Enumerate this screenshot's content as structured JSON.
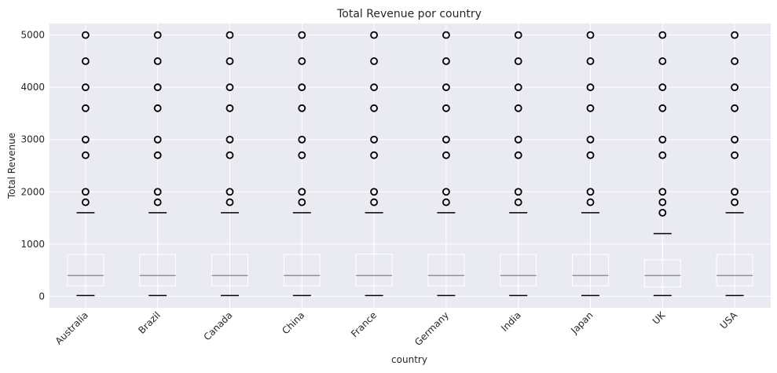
{
  "chart_data": {
    "type": "box",
    "title": "Total Revenue por country",
    "xlabel": "country",
    "ylabel": "Total Revenue",
    "ylim": [
      -220,
      5220
    ],
    "yticks": [
      0,
      1000,
      2000,
      3000,
      4000,
      5000
    ],
    "grid": true,
    "categories": [
      "Australia",
      "Brazil",
      "Canada",
      "China",
      "France",
      "Germany",
      "India",
      "Japan",
      "UK",
      "USA"
    ],
    "boxes": [
      {
        "category": "Australia",
        "whisker_low": 15,
        "q1": 200,
        "median": 400,
        "q3": 800,
        "whisker_high": 1600,
        "outliers": [
          1800,
          2000,
          2700,
          3000,
          3600,
          4000,
          4500,
          5000
        ]
      },
      {
        "category": "Brazil",
        "whisker_low": 15,
        "q1": 200,
        "median": 400,
        "q3": 800,
        "whisker_high": 1600,
        "outliers": [
          1800,
          2000,
          2700,
          3000,
          3600,
          4000,
          4500,
          5000
        ]
      },
      {
        "category": "Canada",
        "whisker_low": 15,
        "q1": 200,
        "median": 400,
        "q3": 800,
        "whisker_high": 1600,
        "outliers": [
          1800,
          2000,
          2700,
          3000,
          3600,
          4000,
          4500,
          5000
        ]
      },
      {
        "category": "China",
        "whisker_low": 15,
        "q1": 200,
        "median": 400,
        "q3": 800,
        "whisker_high": 1600,
        "outliers": [
          1800,
          2000,
          2700,
          3000,
          3600,
          4000,
          4500,
          5000
        ]
      },
      {
        "category": "France",
        "whisker_low": 15,
        "q1": 200,
        "median": 400,
        "q3": 810,
        "whisker_high": 1600,
        "outliers": [
          1800,
          2000,
          2700,
          3000,
          3600,
          4000,
          4500,
          5000
        ]
      },
      {
        "category": "Germany",
        "whisker_low": 15,
        "q1": 200,
        "median": 400,
        "q3": 800,
        "whisker_high": 1600,
        "outliers": [
          1800,
          2000,
          2700,
          3000,
          3600,
          4000,
          4500,
          5000
        ]
      },
      {
        "category": "India",
        "whisker_low": 15,
        "q1": 200,
        "median": 400,
        "q3": 800,
        "whisker_high": 1600,
        "outliers": [
          1800,
          2000,
          2700,
          3000,
          3600,
          4000,
          4500,
          5000
        ]
      },
      {
        "category": "Japan",
        "whisker_low": 15,
        "q1": 200,
        "median": 400,
        "q3": 800,
        "whisker_high": 1600,
        "outliers": [
          1800,
          2000,
          2700,
          3000,
          3600,
          4000,
          4500,
          5000
        ]
      },
      {
        "category": "UK",
        "whisker_low": 15,
        "q1": 180,
        "median": 400,
        "q3": 700,
        "whisker_high": 1200,
        "outliers": [
          1600,
          1800,
          2000,
          2700,
          3000,
          3600,
          4000,
          4500,
          5000
        ]
      },
      {
        "category": "USA",
        "whisker_low": 15,
        "q1": 200,
        "median": 400,
        "q3": 800,
        "whisker_high": 1600,
        "outliers": [
          1800,
          2000,
          2700,
          3000,
          3600,
          4000,
          4500,
          5000
        ]
      }
    ],
    "colors": {
      "plot_background": "#eaeaf2",
      "grid": "#ffffff",
      "box": "#ffffff",
      "median": "#808080",
      "whisker_cap": "#000000",
      "outlier_edge": "#000000"
    }
  }
}
